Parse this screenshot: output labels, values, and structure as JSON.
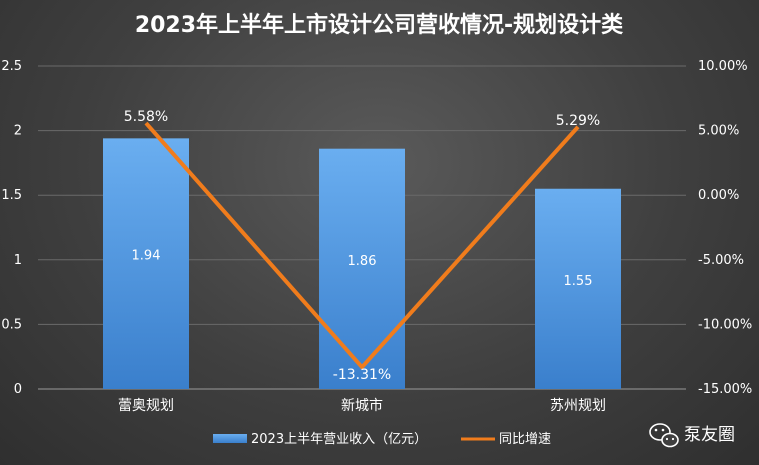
{
  "chart_data": {
    "type": "bar",
    "title": "2023年上半年上市设计公司营收情况-规划设计类",
    "categories": [
      "蕾奥规划",
      "新城市",
      "苏州规划"
    ],
    "series": [
      {
        "name": "2023上半年营业收入（亿元）",
        "type": "bar",
        "axis": "left",
        "values": [
          1.94,
          1.86,
          1.55
        ],
        "labels": [
          "1.94",
          "1.86",
          "1.55"
        ]
      },
      {
        "name": "同比增速",
        "type": "line",
        "axis": "right",
        "values": [
          5.58,
          -13.31,
          5.29
        ],
        "labels": [
          "5.58%",
          "-13.31%",
          "5.29%"
        ]
      }
    ],
    "y_left": {
      "ylim": [
        0,
        2.5
      ],
      "ticks": [
        "0",
        "0.5",
        "1",
        "1.5",
        "2",
        "2.5"
      ]
    },
    "y_right": {
      "ylim": [
        -15,
        10
      ],
      "ticks": [
        "-15.00%",
        "-10.00%",
        "-5.00%",
        "0.00%",
        "5.00%",
        "10.00%"
      ]
    },
    "grid": true,
    "legend_position": "bottom",
    "colors": {
      "bar": "#4a90d9",
      "line": "#f07c1c"
    }
  },
  "watermark": {
    "text": "泵友圈",
    "icon": "wechat-icon"
  }
}
